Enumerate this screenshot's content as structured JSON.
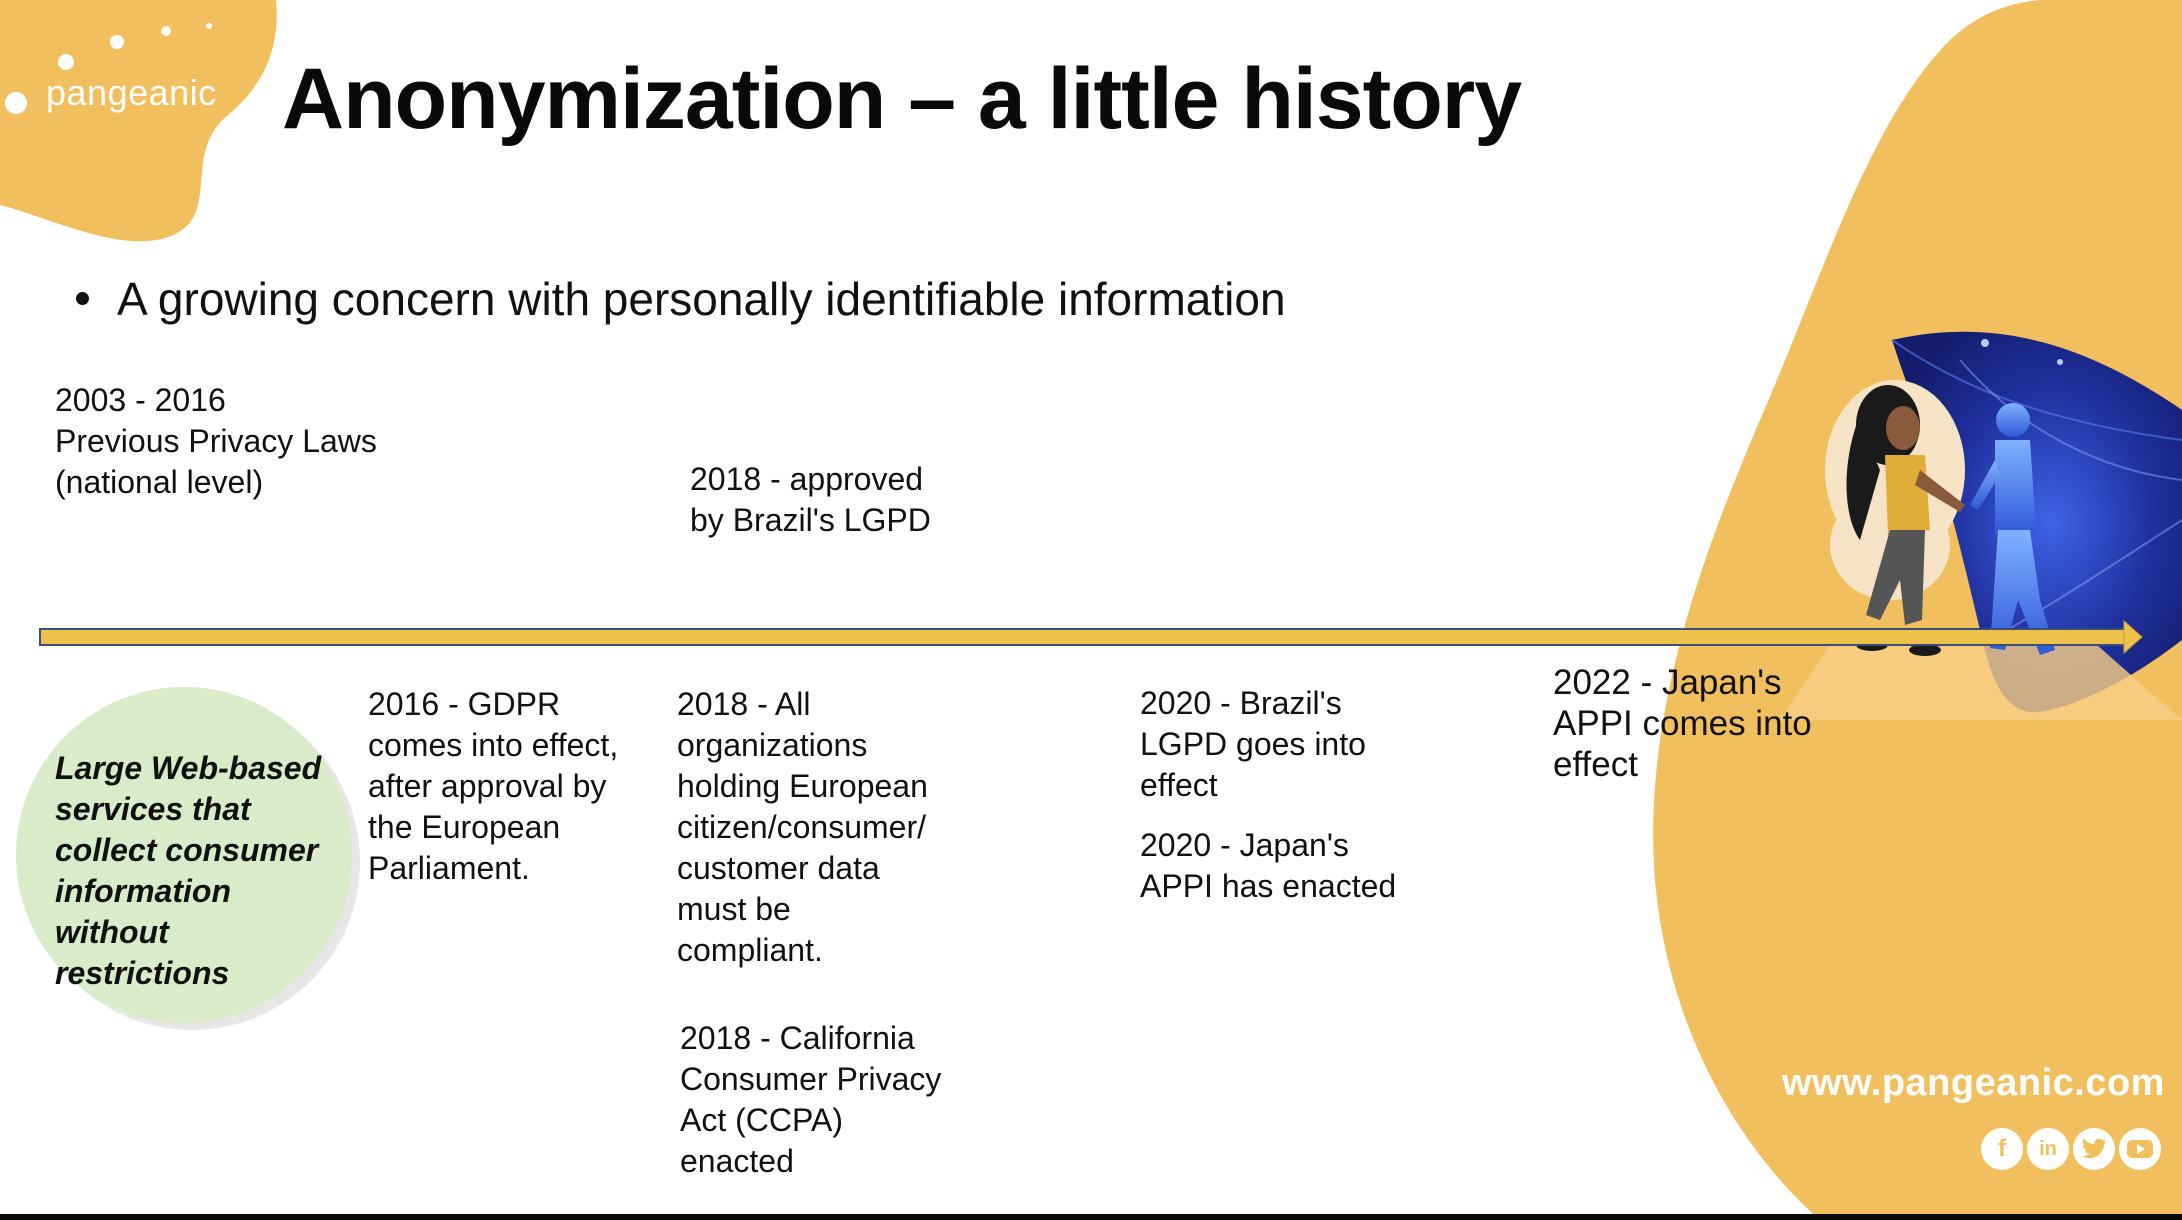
{
  "brand": {
    "logo_text": "pangeanic",
    "website": "www.pangeanic.com"
  },
  "slide": {
    "title": "Anonymization – a little history",
    "bullet": "A growing concern with personally identifiable information"
  },
  "timeline_above": [
    {
      "lines": [
        "2003 - 2016",
        "Previous Privacy Laws",
        "(national level)"
      ]
    },
    {
      "lines": [
        "2018 - approved",
        "by Brazil's LGPD"
      ]
    }
  ],
  "circle_note": {
    "lines": [
      "Large Web-based",
      "services that",
      "collect consumer",
      "information",
      "without",
      "restrictions"
    ]
  },
  "timeline_below": [
    {
      "lines": [
        "2016 - GDPR",
        "comes into effect,",
        "after approval by",
        "the European",
        "Parliament."
      ]
    },
    {
      "lines": [
        "2018 - All",
        "organizations",
        "holding European",
        "citizen/consumer/",
        "customer data",
        "must be",
        "compliant."
      ]
    },
    {
      "lines": [
        "2018 - California",
        "Consumer Privacy",
        "Act (CCPA)",
        "enacted"
      ]
    },
    {
      "lines": [
        "2020 - Brazil's",
        "LGPD goes into",
        "effect"
      ]
    },
    {
      "lines": [
        "2020 - Japan's",
        "APPI has enacted"
      ]
    },
    {
      "lines": [
        "2022 - Japan's",
        "APPI comes into",
        "effect"
      ]
    }
  ],
  "social_icons": [
    "facebook-icon",
    "linkedin-icon",
    "twitter-icon",
    "youtube-icon"
  ],
  "colors": {
    "accent_yellow": "#f2bf5e",
    "arrow_fill": "#ecc24b",
    "arrow_stroke": "#3b4d78",
    "circle_green": "#d9ebc8",
    "deep_blue": "#1c2a8c"
  }
}
